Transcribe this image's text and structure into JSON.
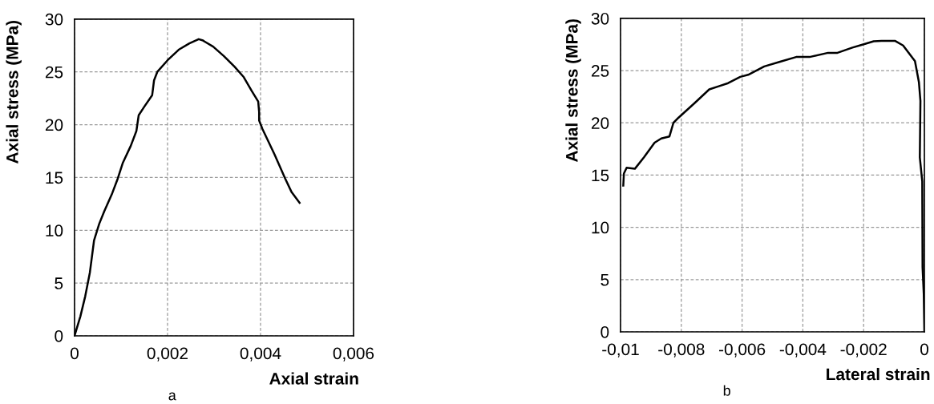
{
  "chart_data": [
    {
      "type": "line",
      "xlabel": "Axial strain",
      "ylabel": "Axial stress (MPa)",
      "annotations": [
        "a"
      ],
      "series": [
        {
          "color": "#000000",
          "x": [
            0,
            0.000126,
            0.00023,
            0.00033,
            0.00042,
            0.00053,
            0.00064,
            0.00081,
            0.00093,
            0.00104,
            0.00121,
            0.00133,
            0.00138,
            0.0015,
            0.00167,
            0.00171,
            0.00178,
            0.002,
            0.00224,
            0.00247,
            0.00267,
            0.00275,
            0.00298,
            0.00321,
            0.00344,
            0.00364,
            0.00381,
            0.00395,
            0.00397,
            0.00397,
            0.00404,
            0.0043,
            0.00453,
            0.00467,
            0.00484
          ],
          "values": [
            0,
            1.85,
            3.75,
            6.0,
            9.05,
            10.6,
            11.8,
            13.5,
            14.9,
            16.4,
            18.0,
            19.4,
            20.9,
            21.7,
            22.8,
            24.2,
            25.0,
            26.1,
            27.1,
            27.7,
            28.1,
            28.0,
            27.4,
            26.5,
            25.5,
            24.5,
            23.2,
            22.2,
            21.2,
            20.4,
            19.6,
            17.2,
            14.9,
            13.6,
            12.6
          ]
        }
      ],
      "xlim": [
        0,
        0.006
      ],
      "xticks": [
        0,
        {
          "value": 0.002,
          "label": "0,002"
        },
        {
          "value": 0.004,
          "label": "0,004"
        },
        {
          "value": 0.006,
          "label": "0,006"
        }
      ],
      "ylim": [
        0,
        30
      ],
      "yticks": [
        0,
        5,
        10,
        15,
        20,
        25,
        30
      ],
      "grid": true,
      "marker": "none",
      "line_style": "solid"
    },
    {
      "type": "line",
      "xlabel": "Lateral strain",
      "ylabel": "Axial stress (MPa)",
      "annotations": [
        "b"
      ],
      "series": [
        {
          "color": "#000000",
          "x": [
            -0.00991,
            -0.00989,
            -0.0098,
            -0.00953,
            -0.00923,
            -0.00888,
            -0.00866,
            -0.00839,
            -0.00826,
            -0.00809,
            -0.00756,
            -0.00708,
            -0.00677,
            -0.00646,
            -0.00606,
            -0.0058,
            -0.00527,
            -0.00475,
            -0.00422,
            -0.00378,
            -0.00317,
            -0.00286,
            -0.00237,
            -0.00202,
            -0.00167,
            -0.00141,
            -0.00097,
            -0.0007,
            -0.00044,
            -0.00031,
            -0.00018,
            -0.00013,
            -0.00015,
            -7e-05,
            -6e-05,
            -2e-05,
            0
          ],
          "values": [
            14.0,
            15.15,
            15.7,
            15.6,
            16.7,
            18.1,
            18.5,
            18.7,
            20.0,
            20.5,
            21.9,
            23.2,
            23.5,
            23.8,
            24.4,
            24.6,
            25.4,
            25.85,
            26.3,
            26.3,
            26.7,
            26.7,
            27.2,
            27.5,
            27.8,
            27.85,
            27.85,
            27.4,
            26.4,
            25.9,
            23.9,
            22.1,
            16.7,
            14.4,
            6.2,
            3.6,
            0
          ]
        }
      ],
      "xlim": [
        -0.01,
        0
      ],
      "xticks": [
        {
          "value": -0.01,
          "label": "-0,01"
        },
        {
          "value": -0.008,
          "label": "-0,008"
        },
        {
          "value": -0.006,
          "label": "-0,006"
        },
        {
          "value": -0.004,
          "label": "-0,004"
        },
        {
          "value": -0.002,
          "label": "-0,002"
        },
        0
      ],
      "ylim": [
        0,
        30
      ],
      "yticks": [
        0,
        5,
        10,
        15,
        20,
        25,
        30
      ],
      "grid": true,
      "marker": "none",
      "line_style": "solid"
    }
  ]
}
